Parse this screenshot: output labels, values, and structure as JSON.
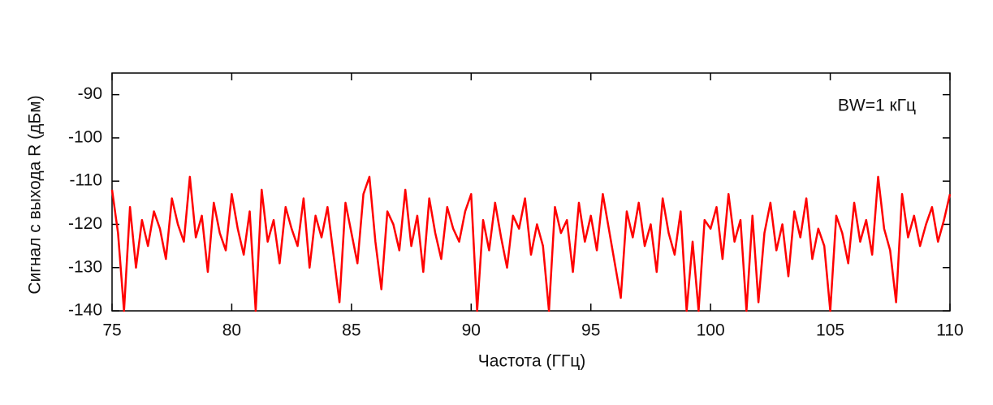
{
  "chart_data": {
    "type": "line",
    "xlabel": "Частота (ГГц)",
    "ylabel": "Сигнал с выхода R (дБм)",
    "annotation": "BW=1 кГц",
    "color": "#ff0000",
    "xlim": [
      75,
      110
    ],
    "xticks": [
      75,
      80,
      85,
      90,
      95,
      100,
      105,
      110
    ],
    "ylim": [
      -140,
      -85
    ],
    "yticks": [
      -140,
      -130,
      -120,
      -110,
      -100,
      -90
    ],
    "x": [
      75,
      75.25,
      75.5,
      75.75,
      76,
      76.25,
      76.5,
      76.75,
      77,
      77.25,
      77.5,
      77.75,
      78,
      78.25,
      78.5,
      78.75,
      79,
      79.25,
      79.5,
      79.75,
      80,
      80.25,
      80.5,
      80.75,
      81,
      81.25,
      81.5,
      81.75,
      82,
      82.25,
      82.5,
      82.75,
      83,
      83.25,
      83.5,
      83.75,
      84,
      84.25,
      84.5,
      84.75,
      85,
      85.25,
      85.5,
      85.75,
      86,
      86.25,
      86.5,
      86.75,
      87,
      87.25,
      87.5,
      87.75,
      88,
      88.25,
      88.5,
      88.75,
      89,
      89.25,
      89.5,
      89.75,
      90,
      90.25,
      90.5,
      90.75,
      91,
      91.25,
      91.5,
      91.75,
      92,
      92.25,
      92.5,
      92.75,
      93,
      93.25,
      93.5,
      93.75,
      94,
      94.25,
      94.5,
      94.75,
      95,
      95.25,
      95.5,
      95.75,
      96,
      96.25,
      96.5,
      96.75,
      97,
      97.25,
      97.5,
      97.75,
      98,
      98.25,
      98.5,
      98.75,
      99,
      99.25,
      99.5,
      99.75,
      100,
      100.25,
      100.5,
      100.75,
      101,
      101.25,
      101.5,
      101.75,
      102,
      102.25,
      102.5,
      102.75,
      103,
      103.25,
      103.5,
      103.75,
      104,
      104.25,
      104.5,
      104.75,
      105,
      105.25,
      105.5,
      105.75,
      106,
      106.25,
      106.5,
      106.75,
      107,
      107.25,
      107.5,
      107.75,
      108,
      108.25,
      108.5,
      108.75,
      109,
      109.25,
      109.5,
      109.75,
      110
    ],
    "values": [
      -112,
      -122,
      -140,
      -116,
      -130,
      -119,
      -125,
      -117,
      -121,
      -128,
      -114,
      -120,
      -124,
      -109,
      -123,
      -118,
      -131,
      -115,
      -122,
      -126,
      -113,
      -121,
      -127,
      -117,
      -140,
      -112,
      -124,
      -119,
      -129,
      -116,
      -121,
      -125,
      -114,
      -130,
      -118,
      -123,
      -116,
      -127,
      -138,
      -115,
      -122,
      -129,
      -113,
      -109,
      -124,
      -135,
      -117,
      -120,
      -126,
      -112,
      -125,
      -118,
      -131,
      -114,
      -122,
      -128,
      -116,
      -121,
      -124,
      -117,
      -113,
      -140,
      -119,
      -126,
      -115,
      -123,
      -130,
      -118,
      -121,
      -114,
      -127,
      -120,
      -125,
      -140,
      -116,
      -122,
      -119,
      -131,
      -115,
      -124,
      -118,
      -126,
      -113,
      -121,
      -129,
      -137,
      -117,
      -123,
      -115,
      -125,
      -120,
      -131,
      -114,
      -122,
      -127,
      -117,
      -140,
      -124,
      -140,
      -119,
      -121,
      -116,
      -128,
      -113,
      -124,
      -119,
      -140,
      -118,
      -138,
      -122,
      -115,
      -126,
      -120,
      -132,
      -117,
      -123,
      -114,
      -128,
      -121,
      -125,
      -140,
      -118,
      -122,
      -129,
      -115,
      -124,
      -119,
      -127,
      -109,
      -121,
      -126,
      -138,
      -113,
      -123,
      -118,
      -125,
      -120,
      -116,
      -124,
      -119,
      -113
    ]
  }
}
